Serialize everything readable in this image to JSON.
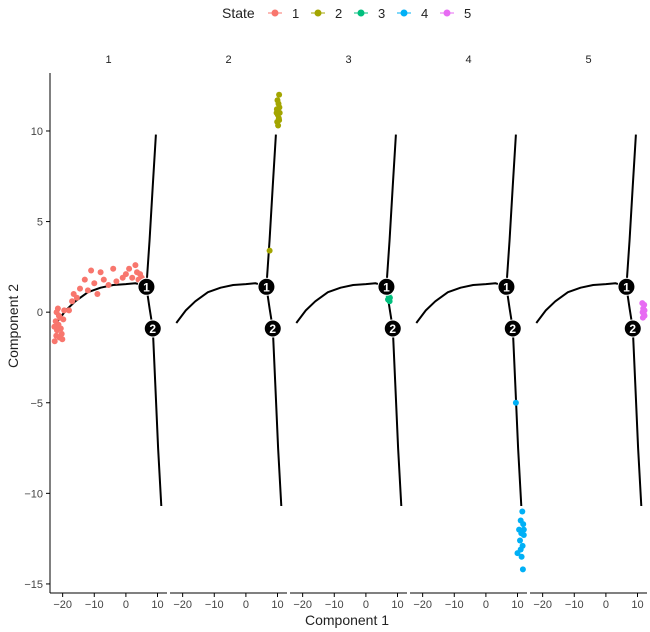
{
  "chart_data": {
    "type": "scatter",
    "legend": {
      "title": "State",
      "position": "top",
      "entries": [
        {
          "label": "1",
          "color": "#F8766D"
        },
        {
          "label": "2",
          "color": "#A3A500"
        },
        {
          "label": "3",
          "color": "#00BF7D"
        },
        {
          "label": "4",
          "color": "#00B0F6"
        },
        {
          "label": "5",
          "color": "#E76BF3"
        }
      ]
    },
    "xlabel": "Component 1",
    "ylabel": "Component 2",
    "xlim": [
      -24,
      13
    ],
    "ylim": [
      -15.5,
      13.2
    ],
    "xticks": [
      -20,
      -10,
      0,
      10
    ],
    "yticks": [
      -15,
      -10,
      -5,
      0,
      5,
      10
    ],
    "grid": false,
    "branch_nodes": [
      {
        "label": "1",
        "x": 6.5,
        "y": 1.4
      },
      {
        "label": "2",
        "x": 8.5,
        "y": -0.9
      }
    ],
    "trajectory": [
      [
        [
          -22,
          -0.6
        ],
        [
          -19,
          0.1
        ],
        [
          -16,
          0.6
        ],
        [
          -12,
          1.1
        ],
        [
          -8,
          1.35
        ],
        [
          -4,
          1.5
        ],
        [
          0,
          1.55
        ],
        [
          3,
          1.6
        ],
        [
          6.5,
          1.4
        ]
      ],
      [
        [
          6.5,
          1.4
        ],
        [
          7.5,
          4
        ],
        [
          8.5,
          7
        ],
        [
          9.5,
          9.8
        ]
      ],
      [
        [
          6.5,
          1.4
        ],
        [
          7.5,
          0.2
        ],
        [
          8.5,
          -0.9
        ]
      ],
      [
        [
          8.5,
          -0.9
        ],
        [
          9.3,
          -4
        ],
        [
          10.2,
          -7.5
        ],
        [
          11.2,
          -10.7
        ]
      ]
    ],
    "facets": [
      {
        "label": "1",
        "state": "1",
        "points": [
          [
            -22.5,
            -1.6
          ],
          [
            -22,
            -1.3
          ],
          [
            -21.8,
            -1.0
          ],
          [
            -21.3,
            -0.7
          ],
          [
            -20.8,
            -0.3
          ],
          [
            -21.9,
            0.0
          ],
          [
            -21.0,
            -1.4
          ],
          [
            -20.3,
            -1.2
          ],
          [
            -22.2,
            -0.5
          ],
          [
            -21.5,
            0.2
          ],
          [
            -20.6,
            -0.9
          ],
          [
            -19.8,
            -0.4
          ],
          [
            -21.2,
            -0.2
          ],
          [
            -22.6,
            -0.8
          ],
          [
            -20.1,
            -1.5
          ],
          [
            -19.5,
            0.1
          ],
          [
            -18,
            0.1
          ],
          [
            -17,
            0.6
          ],
          [
            -16.5,
            1.0
          ],
          [
            -15.5,
            0.8
          ],
          [
            -14.5,
            1.3
          ],
          [
            -13,
            1.8
          ],
          [
            -12,
            1.2
          ],
          [
            -11,
            2.3
          ],
          [
            -10,
            1.6
          ],
          [
            -9,
            1.0
          ],
          [
            -8,
            2.2
          ],
          [
            -7,
            1.8
          ],
          [
            -5.5,
            1.5
          ],
          [
            -4,
            2.4
          ],
          [
            -3,
            1.7
          ],
          [
            -1,
            1.9
          ],
          [
            0,
            2.1
          ],
          [
            1,
            2.4
          ],
          [
            2,
            1.9
          ],
          [
            3,
            2.6
          ],
          [
            3.5,
            2.2
          ],
          [
            4,
            1.8
          ],
          [
            4.5,
            2.1
          ],
          [
            5,
            1.9
          ]
        ]
      },
      {
        "label": "2",
        "state": "2",
        "points": [
          [
            10.5,
            12.0
          ],
          [
            10,
            11.7
          ],
          [
            10.3,
            11.5
          ],
          [
            9.8,
            11.2
          ],
          [
            10.6,
            11.3
          ],
          [
            10.1,
            10.9
          ],
          [
            10.4,
            10.7
          ],
          [
            9.9,
            10.5
          ],
          [
            10.2,
            10.3
          ],
          [
            10.7,
            11.0
          ],
          [
            9.7,
            11.0
          ],
          [
            10.5,
            10.6
          ],
          [
            7.5,
            3.4
          ]
        ]
      },
      {
        "label": "3",
        "state": "3",
        "points": [
          [
            7.2,
            0.9
          ],
          [
            7.6,
            0.8
          ],
          [
            7.0,
            0.7
          ],
          [
            7.5,
            0.6
          ]
        ]
      },
      {
        "label": "4",
        "state": "4",
        "points": [
          [
            9.5,
            -5.0
          ],
          [
            11.5,
            -11.0
          ],
          [
            11.0,
            -11.5
          ],
          [
            11.8,
            -11.7
          ],
          [
            10.5,
            -12.0
          ],
          [
            11.2,
            -12.2
          ],
          [
            12.0,
            -12.3
          ],
          [
            10.8,
            -12.6
          ],
          [
            11.6,
            -12.9
          ],
          [
            11.0,
            -13.1
          ],
          [
            10.0,
            -13.3
          ],
          [
            11.3,
            -13.5
          ],
          [
            12.0,
            -12.0
          ],
          [
            11.7,
            -14.2
          ]
        ]
      },
      {
        "label": "5",
        "state": "5",
        "points": [
          [
            11.5,
            0.5
          ],
          [
            12.1,
            0.4
          ],
          [
            11.8,
            0.2
          ],
          [
            12.2,
            0.1
          ],
          [
            11.6,
            0.0
          ],
          [
            12.0,
            -0.1
          ],
          [
            11.7,
            -0.3
          ],
          [
            12.2,
            -0.2
          ]
        ]
      }
    ]
  }
}
